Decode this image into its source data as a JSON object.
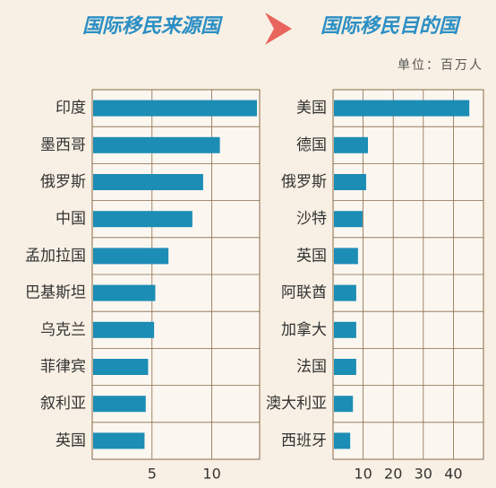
{
  "chart_data": [
    {
      "type": "barh",
      "title": "国际移民来源国",
      "categories": [
        "印度",
        "墨西哥",
        "俄罗斯",
        "中国",
        "孟加拉国",
        "巴基斯坦",
        "乌克兰",
        "菲律宾",
        "叙利亚",
        "英国"
      ],
      "values": [
        13.7,
        10.6,
        9.2,
        8.3,
        6.3,
        5.2,
        5.1,
        4.6,
        4.4,
        4.3
      ],
      "color": "#1c8db5",
      "xlim": [
        0,
        14
      ],
      "xticks": [
        5,
        10
      ],
      "grid": true
    },
    {
      "type": "barh",
      "title": "国际移民目的国",
      "subtitle": "单位：百万人",
      "categories": [
        "美国",
        "德国",
        "俄罗斯",
        "沙特",
        "英国",
        "阿联酋",
        "加拿大",
        "法国",
        "澳大利亚",
        "西班牙"
      ],
      "values": [
        45,
        11.3,
        10.7,
        9.5,
        8,
        7.4,
        7.4,
        7.4,
        6.3,
        5.4
      ],
      "color": "#1c8db5",
      "xlim": [
        0,
        50
      ],
      "xticks": [
        10,
        20,
        30,
        40
      ],
      "grid": true
    }
  ]
}
